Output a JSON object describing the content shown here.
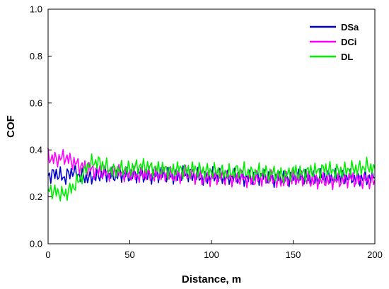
{
  "chart_data": {
    "type": "line",
    "xlabel": "Distance, m",
    "ylabel": "COF",
    "xlim": [
      0,
      200
    ],
    "ylim": [
      0.0,
      1.0
    ],
    "xticks": [
      0,
      50,
      100,
      150,
      200
    ],
    "yticks": [
      0.0,
      0.2,
      0.4,
      0.6,
      0.8,
      1.0
    ],
    "xtick_labels": [
      "0",
      "50",
      "100",
      "150",
      "200"
    ],
    "ytick_labels": [
      "0.0",
      "0.2",
      "0.4",
      "0.6",
      "0.8",
      "1.0"
    ],
    "grid": false,
    "legend_position": "top-right",
    "series": [
      {
        "name": "DSa",
        "color": "#0000cc",
        "x": [
          0,
          5,
          10,
          15,
          20,
          25,
          30,
          35,
          40,
          45,
          50,
          55,
          60,
          65,
          70,
          75,
          80,
          85,
          90,
          95,
          100,
          105,
          110,
          115,
          120,
          125,
          130,
          135,
          140,
          145,
          150,
          155,
          160,
          165,
          170,
          175,
          180,
          185,
          190,
          195,
          200
        ],
        "y": [
          0.29,
          0.3,
          0.28,
          0.31,
          0.29,
          0.28,
          0.29,
          0.3,
          0.29,
          0.3,
          0.29,
          0.3,
          0.29,
          0.29,
          0.3,
          0.29,
          0.29,
          0.3,
          0.29,
          0.28,
          0.29,
          0.29,
          0.28,
          0.29,
          0.28,
          0.28,
          0.29,
          0.28,
          0.28,
          0.28,
          0.28,
          0.29,
          0.28,
          0.28,
          0.29,
          0.28,
          0.29,
          0.28,
          0.28,
          0.28,
          0.28
        ]
      },
      {
        "name": "DCi",
        "color": "#ff00ff",
        "x": [
          0,
          5,
          10,
          15,
          20,
          25,
          30,
          35,
          40,
          45,
          50,
          55,
          60,
          65,
          70,
          75,
          80,
          85,
          90,
          95,
          100,
          105,
          110,
          115,
          120,
          125,
          130,
          135,
          140,
          145,
          150,
          155,
          160,
          165,
          170,
          175,
          180,
          185,
          190,
          195,
          200
        ],
        "y": [
          0.37,
          0.36,
          0.37,
          0.35,
          0.33,
          0.32,
          0.31,
          0.3,
          0.31,
          0.3,
          0.3,
          0.29,
          0.3,
          0.29,
          0.3,
          0.29,
          0.29,
          0.3,
          0.29,
          0.28,
          0.28,
          0.29,
          0.28,
          0.28,
          0.28,
          0.27,
          0.28,
          0.28,
          0.27,
          0.27,
          0.28,
          0.28,
          0.27,
          0.27,
          0.27,
          0.27,
          0.27,
          0.28,
          0.27,
          0.27,
          0.27
        ]
      },
      {
        "name": "DL",
        "color": "#00ee00",
        "x": [
          0,
          5,
          10,
          15,
          20,
          25,
          30,
          35,
          40,
          45,
          50,
          55,
          60,
          65,
          70,
          75,
          80,
          85,
          90,
          95,
          100,
          105,
          110,
          115,
          120,
          125,
          130,
          135,
          140,
          145,
          150,
          155,
          160,
          165,
          170,
          175,
          180,
          185,
          190,
          195,
          200
        ],
        "y": [
          0.23,
          0.22,
          0.21,
          0.24,
          0.28,
          0.34,
          0.35,
          0.33,
          0.31,
          0.32,
          0.32,
          0.33,
          0.33,
          0.32,
          0.32,
          0.31,
          0.32,
          0.31,
          0.32,
          0.31,
          0.31,
          0.31,
          0.3,
          0.31,
          0.31,
          0.3,
          0.31,
          0.3,
          0.3,
          0.29,
          0.31,
          0.3,
          0.31,
          0.31,
          0.32,
          0.31,
          0.31,
          0.32,
          0.32,
          0.33,
          0.32
        ]
      }
    ]
  }
}
